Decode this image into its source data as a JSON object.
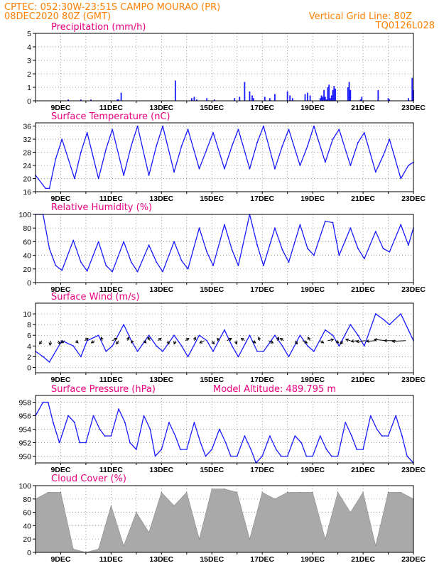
{
  "header": {
    "line1_left": "CPTEC:   052:30W-23:51S   CAMPO MOURAO (PR)",
    "line2_left": "08DEC2020 80Z (GMT)",
    "line2_right": "Vertical Grid Line: 80Z",
    "line3_right": "TQ0126L028"
  },
  "colors": {
    "header": "#ff7f00",
    "panel_title": "#e8007e",
    "line": "#1a1aff",
    "cloud": "#a9a9a9",
    "grid": "#777777"
  },
  "time_axis": {
    "start": "08DEC2020 00Z",
    "end": "23DEC2020 00Z",
    "tick_labels": [
      "9DEC",
      "11DEC",
      "13DEC",
      "15DEC",
      "17DEC",
      "19DEC",
      "21DEC",
      "23DEC"
    ]
  },
  "panels": {
    "precip": {
      "title": "Precipitation (mm/h)"
    },
    "temp": {
      "title": "Surface Temperature (nC)"
    },
    "rh": {
      "title": "Relative Humidity (%)"
    },
    "wind": {
      "title": "Surface Wind (m/s)"
    },
    "pres": {
      "title": "Surface Pressure (hPa)",
      "extra": "Model Altitude: 489.795 m"
    },
    "cloud": {
      "title": "Cloud Cover (%)"
    }
  },
  "chart_data": [
    {
      "type": "bar",
      "title": "Precipitation (mm/h)",
      "ylim": [
        0,
        5
      ],
      "y_ticks": [
        0,
        1,
        2,
        3,
        4,
        5
      ],
      "x_unit": "day offset from 08DEC2020 00Z",
      "x": [
        1.3,
        1.8,
        2.2,
        3.25,
        3.3,
        3.4,
        5.55,
        6.2,
        6.3,
        6.4,
        6.8,
        7.1,
        7.9,
        8.1,
        8.3,
        8.5,
        8.6,
        8.65,
        9.1,
        9.3,
        9.5,
        10.0,
        10.1,
        10.2,
        10.7,
        10.8,
        10.9,
        11.3,
        11.35,
        11.4,
        11.45,
        11.5,
        11.55,
        11.6,
        11.65,
        11.7,
        11.75,
        11.8,
        11.85,
        11.9,
        12.4,
        12.45,
        12.5,
        12.9,
        12.95,
        13.6,
        14.0,
        14.05,
        14.8,
        14.95,
        15.0
      ],
      "values": [
        0.1,
        0.1,
        0.1,
        0.1,
        0.1,
        0.6,
        1.5,
        0.2,
        0.3,
        0.1,
        0.2,
        0.1,
        0.2,
        0.3,
        1.4,
        0.7,
        0.4,
        0.2,
        0.3,
        0.2,
        0.5,
        0.7,
        0.4,
        0.2,
        0.5,
        0.6,
        0.4,
        0.2,
        0.4,
        0.3,
        0.8,
        0.3,
        0.1,
        1.0,
        1.2,
        0.2,
        0.4,
        0.8,
        1.1,
        0.9,
        1.0,
        1.4,
        0.8,
        0.1,
        0.3,
        0.8,
        0.2,
        0.1,
        0.2,
        1.7,
        0.8
      ]
    },
    {
      "type": "line",
      "title": "Surface Temperature (nC)",
      "ylim": [
        16,
        37
      ],
      "y_ticks": [
        16,
        20,
        24,
        28,
        32,
        36
      ],
      "x_unit": "day offset from 08DEC2020 00Z",
      "x": [
        0,
        0.4,
        0.55,
        0.8,
        1.05,
        1.55,
        1.8,
        2.05,
        2.5,
        2.8,
        3.05,
        3.5,
        3.8,
        4.05,
        4.5,
        4.8,
        5.05,
        5.5,
        5.8,
        6.05,
        6.5,
        6.8,
        7.05,
        7.5,
        7.8,
        8.05,
        8.5,
        8.8,
        9.05,
        9.5,
        9.8,
        10.05,
        10.5,
        10.8,
        11.05,
        11.5,
        11.8,
        12.05,
        12.5,
        12.8,
        13.05,
        13.5,
        13.8,
        14.05,
        14.5,
        14.8,
        15.0
      ],
      "values": [
        21,
        17,
        17,
        26,
        32,
        20,
        28,
        34,
        20,
        29,
        35,
        21,
        30,
        36,
        21,
        30,
        36,
        22,
        30,
        35,
        23,
        29,
        34,
        23,
        30,
        35,
        23,
        31,
        36,
        23,
        30,
        35,
        24,
        30,
        36,
        25,
        32,
        35,
        24,
        31,
        34,
        22,
        27,
        32,
        20,
        24,
        25
      ]
    },
    {
      "type": "line",
      "title": "Relative Humidity (%)",
      "ylim": [
        0,
        100
      ],
      "y_ticks": [
        0,
        20,
        40,
        60,
        80,
        100
      ],
      "x_unit": "day offset from 08DEC2020 00Z",
      "x": [
        0,
        0.3,
        0.55,
        0.8,
        1.05,
        1.5,
        1.8,
        2.05,
        2.5,
        2.8,
        3.05,
        3.5,
        3.8,
        4.05,
        4.5,
        4.8,
        5.05,
        5.5,
        5.8,
        6.05,
        6.5,
        6.8,
        7.05,
        7.5,
        7.8,
        8.05,
        8.5,
        8.8,
        9.05,
        9.5,
        9.8,
        10.05,
        10.5,
        10.8,
        11.05,
        11.5,
        11.8,
        12.05,
        12.5,
        12.8,
        13.05,
        13.5,
        13.8,
        14.05,
        14.5,
        14.8,
        15.0
      ],
      "values": [
        100,
        100,
        50,
        25,
        18,
        62,
        30,
        17,
        60,
        25,
        16,
        60,
        30,
        16,
        55,
        30,
        16,
        60,
        32,
        20,
        80,
        45,
        25,
        85,
        48,
        25,
        100,
        55,
        25,
        80,
        48,
        30,
        85,
        50,
        40,
        90,
        88,
        40,
        80,
        50,
        35,
        75,
        50,
        45,
        85,
        55,
        80
      ]
    },
    {
      "type": "line",
      "title": "Surface Wind (m/s)",
      "ylim": [
        -1,
        12
      ],
      "y_ticks": [
        0,
        2,
        4,
        6,
        8,
        10
      ],
      "x_unit": "day offset from 08DEC2020 00Z",
      "x": [
        0,
        0.3,
        0.55,
        0.8,
        1.05,
        1.5,
        1.8,
        2.05,
        2.5,
        2.8,
        3.05,
        3.5,
        3.8,
        4.05,
        4.5,
        4.8,
        5.05,
        5.5,
        5.8,
        6.05,
        6.5,
        6.8,
        7.05,
        7.5,
        7.8,
        8.05,
        8.5,
        8.8,
        9.05,
        9.5,
        9.8,
        10.05,
        10.5,
        10.8,
        11.05,
        11.5,
        11.8,
        12.05,
        12.5,
        12.8,
        13.05,
        13.5,
        13.8,
        14.05,
        14.5,
        14.8,
        15.0
      ],
      "values": [
        3,
        2,
        1,
        3,
        5,
        4,
        2,
        5,
        6,
        3,
        4,
        8,
        5,
        3,
        6,
        4,
        3,
        6,
        4,
        2,
        6,
        5,
        3,
        7,
        4,
        2,
        6,
        3,
        3,
        6,
        4,
        2,
        6,
        4,
        3,
        7,
        6,
        4,
        8,
        6,
        4,
        10,
        9,
        8,
        10,
        7,
        5
      ],
      "arrows": {
        "x": [
          0.25,
          0.6,
          0.9,
          1.15,
          1.6,
          1.95,
          2.35,
          2.65,
          3.05,
          3.3,
          3.65,
          3.85,
          4.3,
          4.55,
          4.85,
          5.25,
          5.55,
          5.95,
          6.3,
          6.7,
          7.0,
          7.3,
          7.6,
          7.95,
          8.3,
          8.6,
          8.9,
          9.25,
          9.6,
          9.85,
          10.3,
          10.6,
          10.9,
          11.3,
          11.6,
          11.9,
          12.2,
          12.5,
          12.8,
          13.1,
          13.5,
          13.9,
          14.3,
          14.7
        ],
        "u": [
          -1,
          -0.3,
          0.8,
          -1.5,
          1,
          1.5,
          -1.5,
          -0.5,
          2,
          -1,
          0.5,
          -0.5,
          1,
          -1,
          1.5,
          0.5,
          -0.5,
          1.5,
          0.5,
          -2,
          1,
          -1,
          2,
          0.3,
          -1.5,
          1.5,
          -0.5,
          2,
          0.5,
          -1.5,
          1,
          2,
          -1,
          1.5,
          2.5,
          1.5,
          -1,
          -2,
          -3,
          -4,
          -4,
          -5,
          -5,
          -6
        ],
        "v": [
          -1.5,
          -2,
          -1.5,
          -1,
          -1,
          1,
          -1,
          1.5,
          1,
          -1.5,
          1.5,
          -1,
          -1,
          1.5,
          1,
          -1.5,
          -1.5,
          1,
          1.5,
          -1,
          -1.5,
          1,
          1,
          -1.5,
          1,
          -1,
          1.5,
          -1,
          1.5,
          1,
          -1.5,
          -1,
          1.5,
          -1,
          0.5,
          -1,
          -1.5,
          0.5,
          -0.3,
          -0.5,
          -0.3,
          0.5,
          0,
          -0.3
        ]
      }
    },
    {
      "type": "line",
      "title": "Surface Pressure (hPa)",
      "ylim": [
        949,
        959
      ],
      "y_ticks": [
        950,
        952,
        954,
        956,
        958
      ],
      "x_unit": "day offset from 08DEC2020 00Z",
      "x": [
        0,
        0.3,
        0.5,
        0.7,
        0.95,
        1.3,
        1.55,
        1.75,
        2.0,
        2.3,
        2.55,
        2.75,
        3.0,
        3.3,
        3.55,
        3.75,
        4.0,
        4.3,
        4.55,
        4.75,
        5.0,
        5.3,
        5.55,
        5.75,
        6.0,
        6.3,
        6.55,
        6.75,
        7.0,
        7.3,
        7.55,
        7.75,
        8.0,
        8.3,
        8.55,
        8.75,
        9.0,
        9.3,
        9.55,
        9.75,
        10.0,
        10.3,
        10.55,
        10.75,
        11.0,
        11.3,
        11.55,
        11.75,
        12.0,
        12.3,
        12.55,
        12.75,
        13.0,
        13.3,
        13.55,
        13.75,
        14.0,
        14.3,
        14.55,
        14.75,
        15.0
      ],
      "values": [
        956,
        958,
        958,
        955,
        952,
        956,
        955,
        952,
        952,
        956,
        954,
        953,
        953,
        957,
        955,
        952,
        951,
        956,
        954,
        950,
        951,
        955,
        953,
        951,
        951,
        955,
        952,
        950,
        951,
        954,
        952,
        950,
        950,
        953,
        951,
        949,
        950,
        953,
        951,
        950,
        950,
        953,
        952,
        950,
        950,
        953,
        951,
        950,
        950,
        955,
        953,
        951,
        951,
        956,
        954,
        953,
        953,
        956,
        953,
        950,
        949
      ]
    },
    {
      "type": "area",
      "title": "Cloud Cover (%)",
      "ylim": [
        0,
        100
      ],
      "y_ticks": [
        0,
        20,
        40,
        60,
        80,
        100
      ],
      "x_unit": "day offset from 08DEC2020 00Z",
      "x": [
        0,
        0.5,
        1.0,
        1.5,
        2.0,
        2.5,
        3.0,
        3.5,
        4.0,
        4.5,
        5.0,
        5.5,
        6.0,
        6.5,
        7.0,
        7.5,
        8.0,
        8.5,
        9.0,
        9.5,
        10.0,
        10.5,
        11.0,
        11.5,
        12.0,
        12.5,
        13.0,
        13.5,
        14.0,
        14.5,
        15.0
      ],
      "values": [
        80,
        90,
        90,
        5,
        0,
        5,
        70,
        10,
        60,
        30,
        90,
        70,
        90,
        20,
        95,
        95,
        90,
        20,
        90,
        80,
        90,
        90,
        90,
        20,
        90,
        60,
        90,
        10,
        90,
        90,
        80
      ]
    }
  ]
}
